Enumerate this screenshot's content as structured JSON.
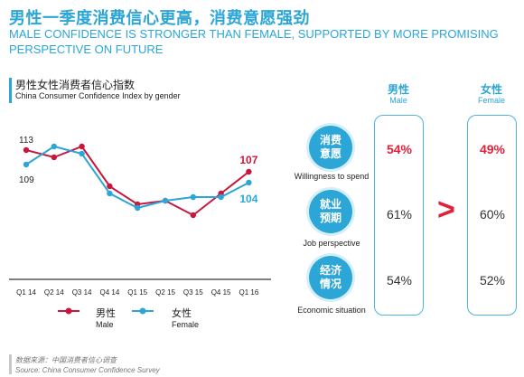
{
  "header": {
    "title_cn": "男性一季度消费信心更高，消费意愿强劲",
    "title_en": "MALE CONFIDENCE IS STRONGER THAN FEMALE, SUPPORTED BY MORE PROMISING PERSPECTIVE ON FUTURE"
  },
  "chart": {
    "title_cn": "男性女性消费者信心指数",
    "title_en": "China Consumer Confidence Index by gender"
  },
  "legend": {
    "male_cn": "男性",
    "male_en": "Male",
    "female_cn": "女性",
    "female_en": "Female"
  },
  "chart_data": {
    "type": "line",
    "title": "男性女性消费者信心指数 / China Consumer Confidence Index by gender",
    "categories": [
      "Q1 14",
      "Q2 14",
      "Q3 14",
      "Q4 14",
      "Q1 15",
      "Q2 15",
      "Q3 15",
      "Q4 15",
      "Q1 16"
    ],
    "series": [
      {
        "name": "男性 Male",
        "color": "#c8173f",
        "values": [
          113,
          111,
          114,
          103,
          98,
          99,
          95,
          101,
          107
        ],
        "labels": {
          "0": "113",
          "8": "107"
        }
      },
      {
        "name": "女性 Female",
        "color": "#2ca6d6",
        "values": [
          109,
          114,
          112,
          101,
          97,
          99,
          100,
          100,
          104
        ],
        "labels": {
          "0": "109",
          "8": "104"
        }
      }
    ],
    "ylim": [
      82,
      122
    ],
    "grid": false,
    "legend_position": "bottom"
  },
  "comparison": {
    "male_head": "男性",
    "male_sub": "Male",
    "female_head": "女性",
    "female_sub": "Female",
    "greater_symbol": ">",
    "rows": [
      {
        "circle": "消费\n意愿",
        "label": "Willingness to spend",
        "male": "54%",
        "female": "49%"
      },
      {
        "circle": "就业\n预期",
        "label": "Job perspective",
        "male": "61%",
        "female": "60%"
      },
      {
        "circle": "经济\n情况",
        "label": "Economic situation",
        "male": "54%",
        "female": "52%"
      }
    ]
  },
  "source": {
    "cn": "数据来源：中国消费者信心调查",
    "en": "Source: China Consumer Confidence Survey"
  }
}
